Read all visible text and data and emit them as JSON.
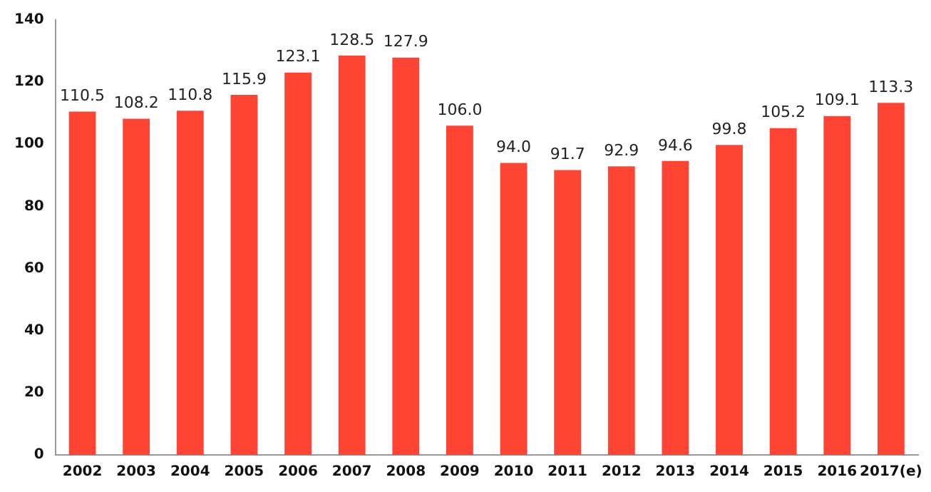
{
  "chart_data": {
    "type": "bar",
    "categories": [
      "2002",
      "2003",
      "2004",
      "2005",
      "2006",
      "2007",
      "2008",
      "2009",
      "2010",
      "2011",
      "2012",
      "2013",
      "2014",
      "2015",
      "2016",
      "2017(e)"
    ],
    "values": [
      110.5,
      108.2,
      110.8,
      115.9,
      123.1,
      128.5,
      127.9,
      106.0,
      94.0,
      91.7,
      92.9,
      94.6,
      99.8,
      105.2,
      109.1,
      113.3
    ],
    "value_labels": [
      "110.5",
      "108.2",
      "110.8",
      "115.9",
      "123.1",
      "128.5",
      "127.9",
      "106.0",
      "94.0",
      "91.7",
      "92.9",
      "94.6",
      "99.8",
      "105.2",
      "109.1",
      "113.3"
    ],
    "color": "#ff4433",
    "ylim": [
      0,
      140
    ],
    "yticks": [
      0,
      20,
      40,
      60,
      80,
      100,
      120,
      140
    ],
    "grid": false,
    "legend": false
  }
}
